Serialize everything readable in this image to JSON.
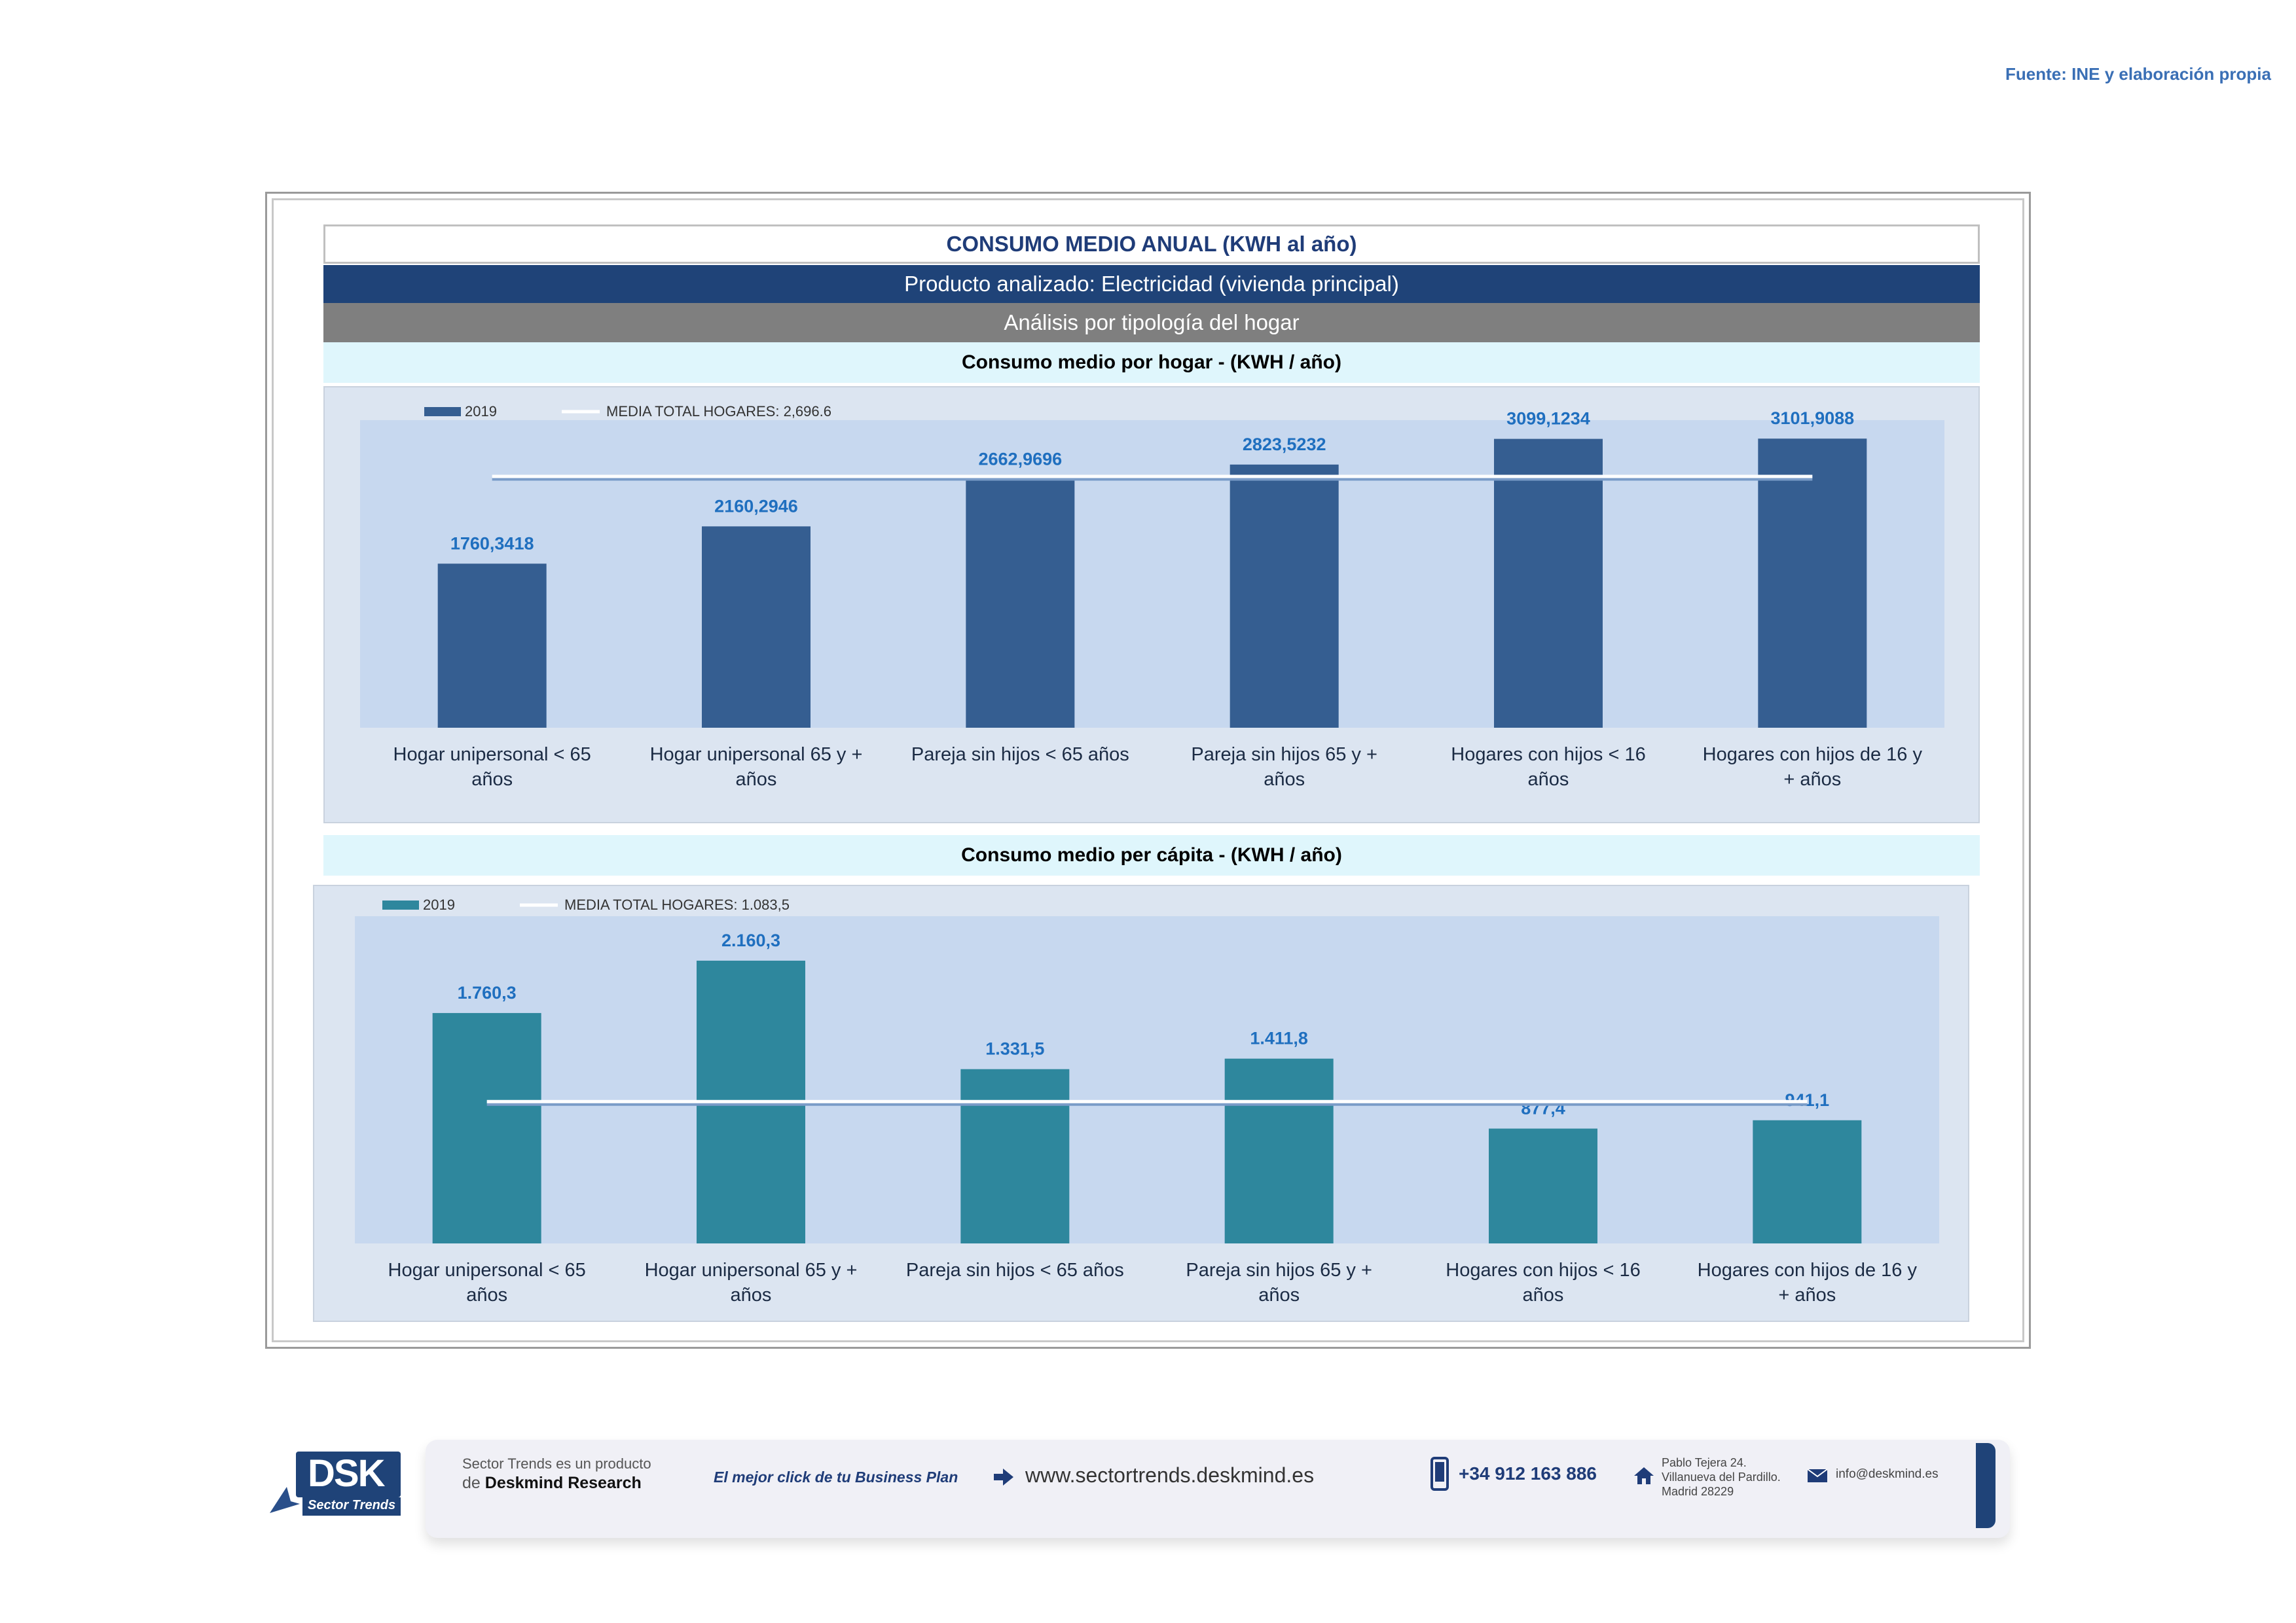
{
  "source": "Fuente: INE y elaboración propia",
  "header": {
    "title": "CONSUMO MEDIO ANUAL (KWH al año)",
    "product": "Producto analizado: Electricidad (vivienda principal)",
    "analysis": "Análisis por tipología del hogar"
  },
  "chart_data": [
    {
      "type": "bar",
      "title": "Consumo medio por hogar -  (KWH / año)",
      "categories": [
        "Hogar unipersonal < 65 años",
        "Hogar unipersonal  65 y + años",
        "Pareja sin hijos < 65 años",
        "Pareja sin hijos 65 y + años",
        "Hogares con hijos < 16 años",
        "Hogares con hijos de 16 y + años"
      ],
      "series": [
        {
          "name": "2019",
          "values": [
            1760.3418,
            2160.2946,
            2662.9696,
            2823.5232,
            3099.1234,
            3101.9088
          ],
          "labels": [
            "1760,3418",
            "2160,2946",
            "2662,9696",
            "2823,5232",
            "3099,1234",
            "3101,9088"
          ]
        }
      ],
      "reference_line": {
        "label": "MEDIA TOTAL  HOGARES:   2,696.6",
        "value": 2696.6
      },
      "ylim": [
        0,
        3300
      ],
      "color": "#355e91",
      "legend": "top-left",
      "grid": false
    },
    {
      "type": "bar",
      "title": "Consumo medio per cápita -  (KWH / año)",
      "categories": [
        "Hogar unipersonal < 65 años",
        "Hogar unipersonal  65 y + años",
        "Pareja sin hijos < 65 años",
        "Pareja sin hijos 65 y + años",
        "Hogares con hijos < 16 años",
        "Hogares con hijos de 16 y + años"
      ],
      "series": [
        {
          "name": "2019",
          "values": [
            1760.3,
            2160.3,
            1331.5,
            1411.8,
            877.4,
            941.1
          ],
          "labels": [
            "1.760,3",
            "2.160,3",
            "1.331,5",
            "1.411,8",
            "877,4",
            "941,1"
          ]
        }
      ],
      "reference_line": {
        "label": "MEDIA TOTAL  HOGARES:   1.083,5",
        "value": 1083.5
      },
      "ylim": [
        0,
        2500
      ],
      "color": "#2e879d",
      "legend": "top-left",
      "grid": false
    }
  ],
  "footer": {
    "logo_text": "DSK",
    "logo_sub": "Sector Trends",
    "tagline_1": "Sector Trends es un producto",
    "tagline_2_prefix": "de",
    "tagline_2_brand": "Deskmind Research",
    "slogan": "El mejor click de tu Business Plan",
    "website": "www.sectortrends.deskmind.es",
    "phone": "+34 912 163 886",
    "address_1": "Pablo Tejera 24.",
    "address_2": "Villanueva del Pardillo.",
    "address_3": "Madrid 28229",
    "email": "info@deskmind.es",
    "accent_color": "#1f4378"
  }
}
